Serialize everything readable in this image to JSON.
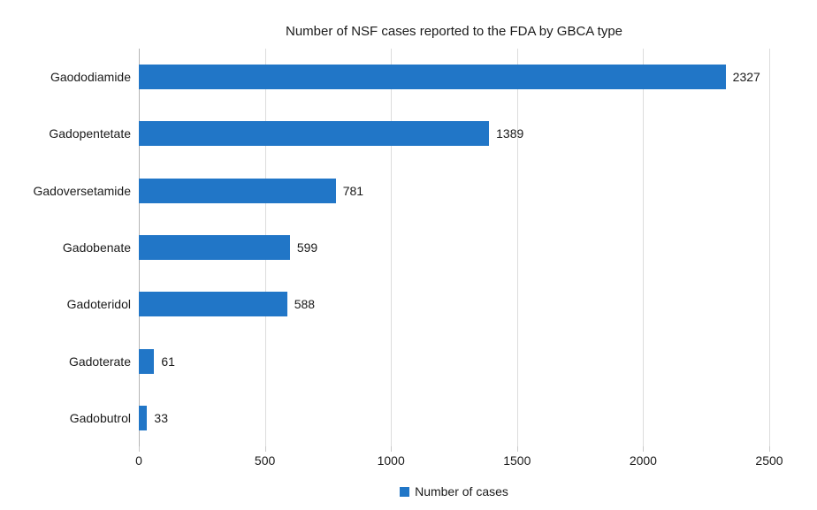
{
  "chart_data": {
    "type": "bar",
    "orientation": "horizontal",
    "title": "Number of NSF cases reported to the FDA by GBCA type",
    "categories": [
      "Gaododiamide",
      "Gadopentetate",
      "Gadoversetamide",
      "Gadobenate",
      "Gadoteridol",
      "Gadoterate",
      "Gadobutrol"
    ],
    "values": [
      2327,
      1389,
      781,
      599,
      588,
      61,
      33
    ],
    "series_name": "Number of cases",
    "xlabel": "",
    "ylabel": "",
    "xlim": [
      0,
      2500
    ],
    "x_ticks": [
      0,
      500,
      1000,
      1500,
      2000,
      2500
    ],
    "grid": true,
    "value_labels_shown": true,
    "legend_position": "bottom"
  },
  "legend": {
    "label": "Number of cases"
  },
  "colors": {
    "bar": "#2176c7",
    "gridline": "#dcdcdc",
    "axis_line": "#b5b5b5",
    "text": "#1a1a1a",
    "background": "#ffffff"
  }
}
